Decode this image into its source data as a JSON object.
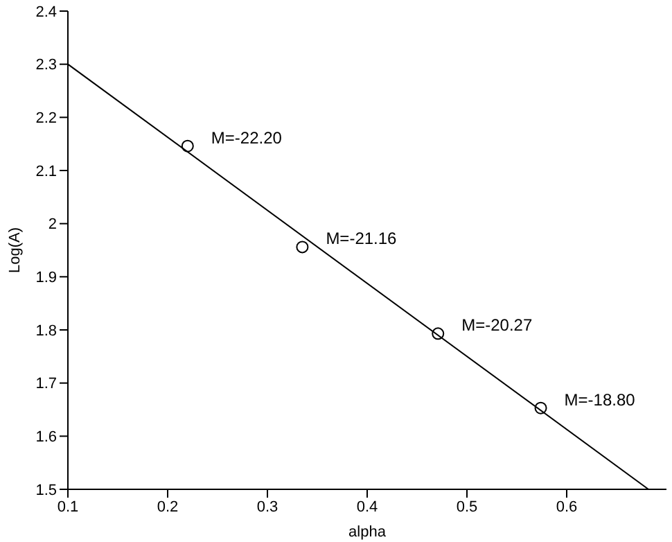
{
  "chart_data": {
    "type": "scatter",
    "xlabel": "alpha",
    "ylabel": "Log(A)",
    "xlim": [
      0.1,
      0.7
    ],
    "xticks": [
      0.1,
      0.2,
      0.3,
      0.4,
      0.5,
      0.6
    ],
    "ylim": [
      1.5,
      2.4
    ],
    "yticks": [
      1.5,
      1.6,
      1.7,
      1.8,
      1.9,
      2,
      2.1,
      2.2,
      2.3,
      2.4
    ],
    "grid": false,
    "legend": false,
    "marker": "circle",
    "series": [
      {
        "color": "#000000",
        "x": [
          0.22,
          0.335,
          0.471,
          0.574
        ],
        "values": [
          2.146,
          1.956,
          1.793,
          1.653
        ]
      },
      {
        "type": "line",
        "color": "#000000",
        "marker": "none",
        "line_style": "solid",
        "x": [
          0.1,
          0.682
        ],
        "values": [
          2.3,
          1.5
        ]
      }
    ],
    "annotations": [
      {
        "text": "M=-22.20",
        "x": 0.22,
        "y": 2.146
      },
      {
        "text": "M=-21.16",
        "x": 0.335,
        "y": 1.956
      },
      {
        "text": "M=-20.27",
        "x": 0.471,
        "y": 1.793
      },
      {
        "text": "M=-18.80",
        "x": 0.574,
        "y": 1.653
      }
    ]
  }
}
